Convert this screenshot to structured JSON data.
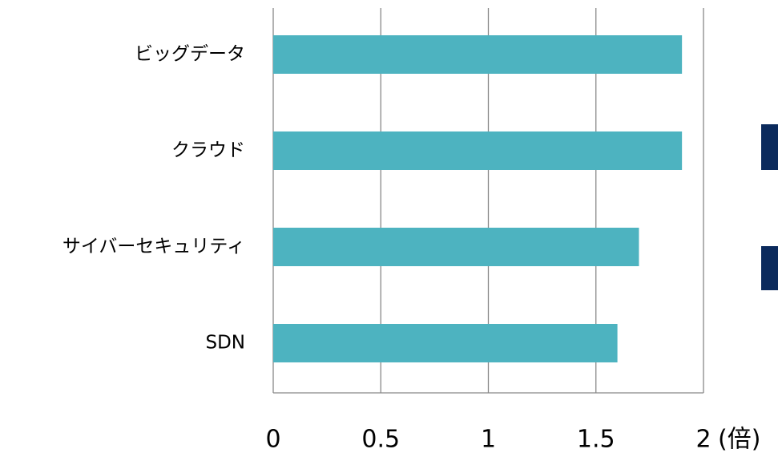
{
  "chart_data": {
    "type": "bar",
    "orientation": "horizontal",
    "categories": [
      "ビッグデータ",
      "クラウド",
      "サイバーセキュリティ",
      "SDN"
    ],
    "values": [
      1.9,
      1.9,
      1.7,
      1.6
    ],
    "color": "#4db3c0",
    "xlim": [
      0,
      2
    ],
    "xticks": [
      0,
      0.5,
      1,
      1.5,
      2
    ],
    "x_label": "(倍)",
    "grid": true
  }
}
